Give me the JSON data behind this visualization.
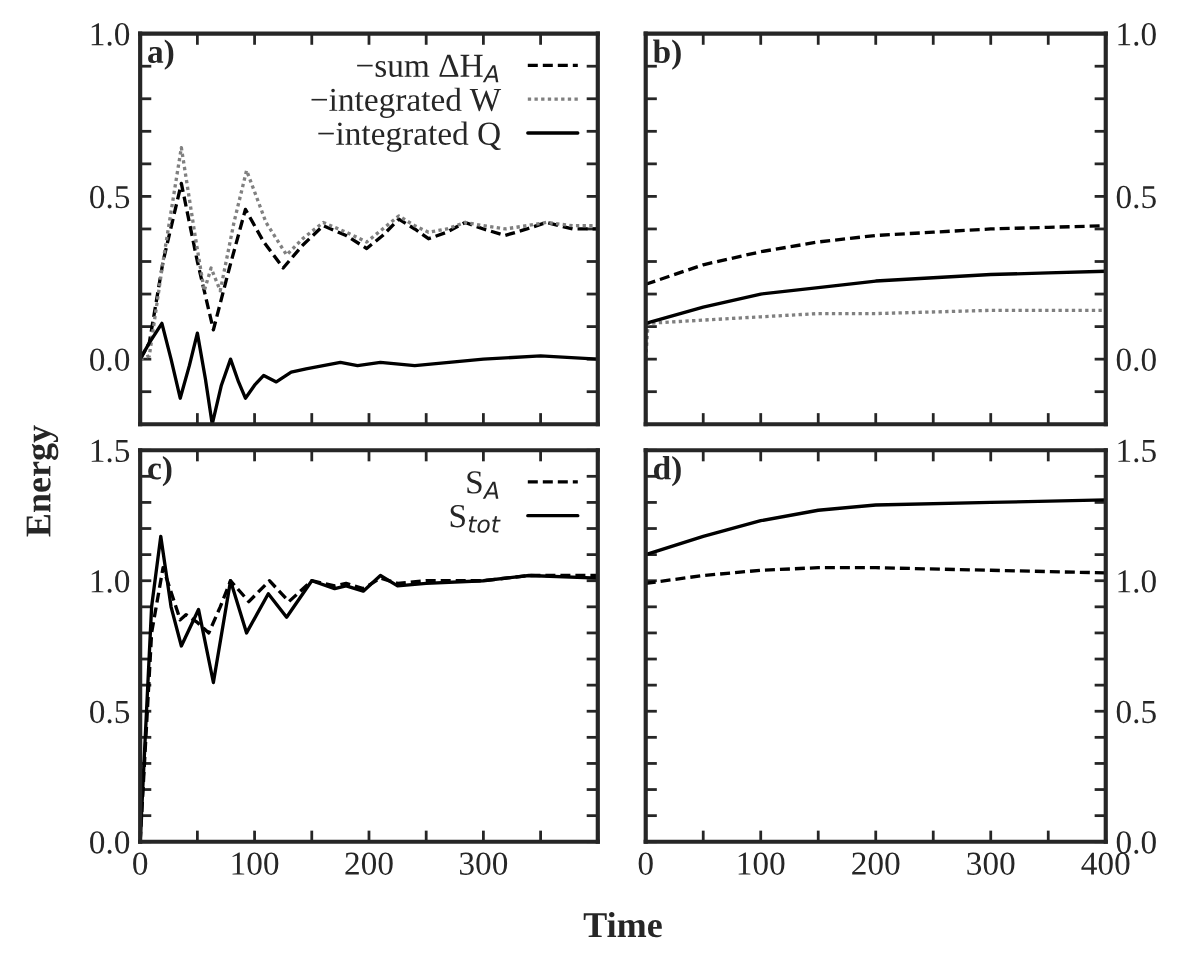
{
  "chart_data": [
    {
      "type": "line",
      "ylabel": "Energy",
      "annotations": [
        "a)"
      ],
      "legend": "top right",
      "tick_labels": "y",
      "xlim": [
        0,
        400
      ],
      "ylim": [
        -0.2,
        1.0
      ],
      "xticks": [
        {
          "value": 0,
          "label": null
        },
        {
          "value": 50,
          "label": null
        },
        {
          "value": 100,
          "label": null
        },
        {
          "value": 150,
          "label": null
        },
        {
          "value": 200,
          "label": null
        },
        {
          "value": 250,
          "label": null
        },
        {
          "value": 300,
          "label": null
        },
        {
          "value": 350,
          "label": null
        },
        {
          "value": 400,
          "label": null
        }
      ],
      "yticks": [
        {
          "value": -0.1,
          "label": null
        },
        {
          "value": 0.0,
          "label": "0.0"
        },
        {
          "value": 0.1,
          "label": null
        },
        {
          "value": 0.2,
          "label": null
        },
        {
          "value": 0.3,
          "label": null
        },
        {
          "value": 0.4,
          "label": null
        },
        {
          "value": 0.5,
          "label": "0.5"
        },
        {
          "value": 0.6,
          "label": null
        },
        {
          "value": 0.7,
          "label": null
        },
        {
          "value": 0.8,
          "label": null
        },
        {
          "value": 0.9,
          "label": null
        },
        {
          "value": 1.0,
          "label": "1.0"
        }
      ],
      "series": [
        {
          "name": "−sum ΔH$_{A}$",
          "color": "#000000",
          "line_style": "dashed",
          "x": [
            0,
            8,
            20,
            36,
            50,
            64,
            78,
            92,
            108,
            125,
            142,
            160,
            180,
            198,
            212,
            226,
            240,
            252,
            268,
            284,
            300,
            319,
            338,
            355,
            378,
            400
          ],
          "values": [
            0,
            0.05,
            0.3,
            0.54,
            0.3,
            0.09,
            0.28,
            0.46,
            0.36,
            0.28,
            0.35,
            0.41,
            0.38,
            0.34,
            0.38,
            0.43,
            0.4,
            0.37,
            0.39,
            0.42,
            0.4,
            0.38,
            0.4,
            0.42,
            0.4,
            0.4
          ]
        },
        {
          "name": "−integrated W",
          "color": "#808080",
          "line_style": "dotted",
          "x": [
            0,
            8,
            20,
            36,
            48,
            56,
            62,
            70,
            82,
            93,
            110,
            128,
            142,
            160,
            180,
            198,
            212,
            226,
            240,
            252,
            268,
            284,
            300,
            319,
            338,
            355,
            378,
            400
          ],
          "values": [
            0,
            0.01,
            0.3,
            0.65,
            0.38,
            0.21,
            0.28,
            0.21,
            0.42,
            0.58,
            0.42,
            0.32,
            0.37,
            0.42,
            0.39,
            0.36,
            0.4,
            0.44,
            0.41,
            0.39,
            0.4,
            0.42,
            0.41,
            0.4,
            0.41,
            0.42,
            0.41,
            0.41
          ]
        },
        {
          "name": "−integrated Q",
          "color": "#000000",
          "line_style": "solid",
          "x": [
            0,
            8,
            19,
            27,
            35,
            43,
            50,
            57,
            63,
            71,
            79,
            86,
            92,
            100,
            108,
            119,
            132,
            145,
            160,
            175,
            190,
            210,
            240,
            270,
            300,
            350,
            400
          ],
          "values": [
            0,
            0.05,
            0.11,
            0.0,
            -0.12,
            -0.02,
            0.08,
            -0.06,
            -0.2,
            -0.08,
            0.0,
            -0.07,
            -0.12,
            -0.08,
            -0.05,
            -0.07,
            -0.04,
            -0.03,
            -0.02,
            -0.01,
            -0.02,
            -0.01,
            -0.02,
            -0.01,
            0.0,
            0.01,
            0.0
          ]
        }
      ]
    },
    {
      "type": "line",
      "annotations": [
        "b)"
      ],
      "tick_labels": "y",
      "xlim": [
        0,
        400
      ],
      "ylim": [
        -0.2,
        1.0
      ],
      "xticks": [
        {
          "value": 0,
          "label": null
        },
        {
          "value": 50,
          "label": null
        },
        {
          "value": 100,
          "label": null
        },
        {
          "value": 150,
          "label": null
        },
        {
          "value": 200,
          "label": null
        },
        {
          "value": 250,
          "label": null
        },
        {
          "value": 300,
          "label": null
        },
        {
          "value": 350,
          "label": null
        },
        {
          "value": 400,
          "label": null
        }
      ],
      "yticks": [
        {
          "value": -0.1,
          "label": null
        },
        {
          "value": 0.0,
          "label": "0.0"
        },
        {
          "value": 0.1,
          "label": null
        },
        {
          "value": 0.2,
          "label": null
        },
        {
          "value": 0.3,
          "label": null
        },
        {
          "value": 0.4,
          "label": null
        },
        {
          "value": 0.5,
          "label": "0.5"
        },
        {
          "value": 0.6,
          "label": null
        },
        {
          "value": 0.7,
          "label": null
        },
        {
          "value": 0.8,
          "label": null
        },
        {
          "value": 0.9,
          "label": null
        },
        {
          "value": 1.0,
          "label": "1.0"
        }
      ],
      "series": [
        {
          "color": "#000000",
          "line_style": "dashed",
          "x": [
            0,
            50,
            100,
            150,
            200,
            250,
            300,
            350,
            400
          ],
          "values": [
            0.23,
            0.29,
            0.33,
            0.36,
            0.38,
            0.39,
            0.4,
            0.405,
            0.41
          ]
        },
        {
          "color": "#808080",
          "line_style": "dotted",
          "x": [
            0,
            2,
            50,
            100,
            150,
            200,
            300,
            400
          ],
          "values": [
            0.0,
            0.11,
            0.12,
            0.13,
            0.14,
            0.14,
            0.15,
            0.15
          ]
        },
        {
          "color": "#000000",
          "line_style": "solid",
          "x": [
            0,
            50,
            100,
            150,
            200,
            250,
            300,
            350,
            400
          ],
          "values": [
            0.11,
            0.16,
            0.2,
            0.22,
            0.24,
            0.25,
            0.26,
            0.265,
            0.27
          ]
        }
      ]
    },
    {
      "type": "line",
      "xlabel": "Time",
      "annotations": [
        "c)"
      ],
      "legend": "top right",
      "xlim": [
        0,
        400
      ],
      "ylim": [
        0,
        1.5
      ],
      "xticks": [
        {
          "value": 0,
          "label": "0"
        },
        {
          "value": 50,
          "label": null
        },
        {
          "value": 100,
          "label": "100"
        },
        {
          "value": 150,
          "label": null
        },
        {
          "value": 200,
          "label": "200"
        },
        {
          "value": 250,
          "label": null
        },
        {
          "value": 300,
          "label": "300"
        },
        {
          "value": 350,
          "label": null
        },
        {
          "value": 400,
          "label": null
        }
      ],
      "yticks": [
        {
          "value": 0.0,
          "label": "0.0"
        },
        {
          "value": 0.1,
          "label": null
        },
        {
          "value": 0.2,
          "label": null
        },
        {
          "value": 0.3,
          "label": null
        },
        {
          "value": 0.4,
          "label": null
        },
        {
          "value": 0.5,
          "label": "0.5"
        },
        {
          "value": 0.6,
          "label": null
        },
        {
          "value": 0.7,
          "label": null
        },
        {
          "value": 0.8,
          "label": null
        },
        {
          "value": 0.9,
          "label": null
        },
        {
          "value": 1.0,
          "label": "1.0"
        },
        {
          "value": 1.1,
          "label": null
        },
        {
          "value": 1.2,
          "label": null
        },
        {
          "value": 1.3,
          "label": null
        },
        {
          "value": 1.4,
          "label": null
        },
        {
          "value": 1.5,
          "label": "1.5"
        }
      ],
      "series": [
        {
          "name": "S$_{A}$",
          "color": "#000000",
          "line_style": "dashed",
          "x": [
            0,
            10,
            20,
            35,
            40,
            50,
            60,
            70,
            79,
            95,
            113,
            130,
            150,
            170,
            180,
            195,
            210,
            225,
            250,
            300,
            340,
            400
          ],
          "values": [
            0,
            0.8,
            1.05,
            0.85,
            0.87,
            0.84,
            0.8,
            0.9,
            1.0,
            0.92,
            1.0,
            0.92,
            1.0,
            0.98,
            0.99,
            0.97,
            1.01,
            0.99,
            1.0,
            1.0,
            1.02,
            1.02
          ]
        },
        {
          "name": "S$_{tot}$",
          "color": "#000000",
          "line_style": "solid",
          "x": [
            0,
            10,
            18,
            27,
            36,
            51,
            64,
            79,
            93,
            112,
            128,
            150,
            170,
            180,
            195,
            210,
            225,
            250,
            300,
            340,
            400
          ],
          "values": [
            0,
            0.9,
            1.17,
            0.9,
            0.75,
            0.89,
            0.61,
            1.0,
            0.8,
            0.95,
            0.86,
            1.0,
            0.97,
            0.98,
            0.96,
            1.02,
            0.98,
            0.99,
            1.0,
            1.02,
            1.01
          ]
        }
      ]
    },
    {
      "type": "line",
      "annotations": [
        "d)"
      ],
      "xlim": [
        0,
        400
      ],
      "ylim": [
        0,
        1.5
      ],
      "xticks": [
        {
          "value": 0,
          "label": "0"
        },
        {
          "value": 50,
          "label": null
        },
        {
          "value": 100,
          "label": "100"
        },
        {
          "value": 150,
          "label": null
        },
        {
          "value": 200,
          "label": "200"
        },
        {
          "value": 250,
          "label": null
        },
        {
          "value": 300,
          "label": "300"
        },
        {
          "value": 350,
          "label": null
        },
        {
          "value": 400,
          "label": "400"
        }
      ],
      "yticks": [
        {
          "value": 0.0,
          "label": "0.0"
        },
        {
          "value": 0.1,
          "label": null
        },
        {
          "value": 0.2,
          "label": null
        },
        {
          "value": 0.3,
          "label": null
        },
        {
          "value": 0.4,
          "label": null
        },
        {
          "value": 0.5,
          "label": "0.5"
        },
        {
          "value": 0.6,
          "label": null
        },
        {
          "value": 0.7,
          "label": null
        },
        {
          "value": 0.8,
          "label": null
        },
        {
          "value": 0.9,
          "label": null
        },
        {
          "value": 1.0,
          "label": "1.0"
        },
        {
          "value": 1.1,
          "label": null
        },
        {
          "value": 1.2,
          "label": null
        },
        {
          "value": 1.3,
          "label": null
        },
        {
          "value": 1.4,
          "label": null
        },
        {
          "value": 1.5,
          "label": "1.5"
        }
      ],
      "series": [
        {
          "color": "#000000",
          "line_style": "dashed",
          "x": [
            0,
            50,
            100,
            150,
            200,
            300,
            400
          ],
          "values": [
            0.99,
            1.02,
            1.04,
            1.05,
            1.05,
            1.04,
            1.03
          ]
        },
        {
          "color": "#000000",
          "line_style": "solid",
          "x": [
            0,
            50,
            100,
            150,
            200,
            300,
            400
          ],
          "values": [
            1.1,
            1.17,
            1.23,
            1.27,
            1.29,
            1.3,
            1.31
          ]
        }
      ]
    }
  ]
}
